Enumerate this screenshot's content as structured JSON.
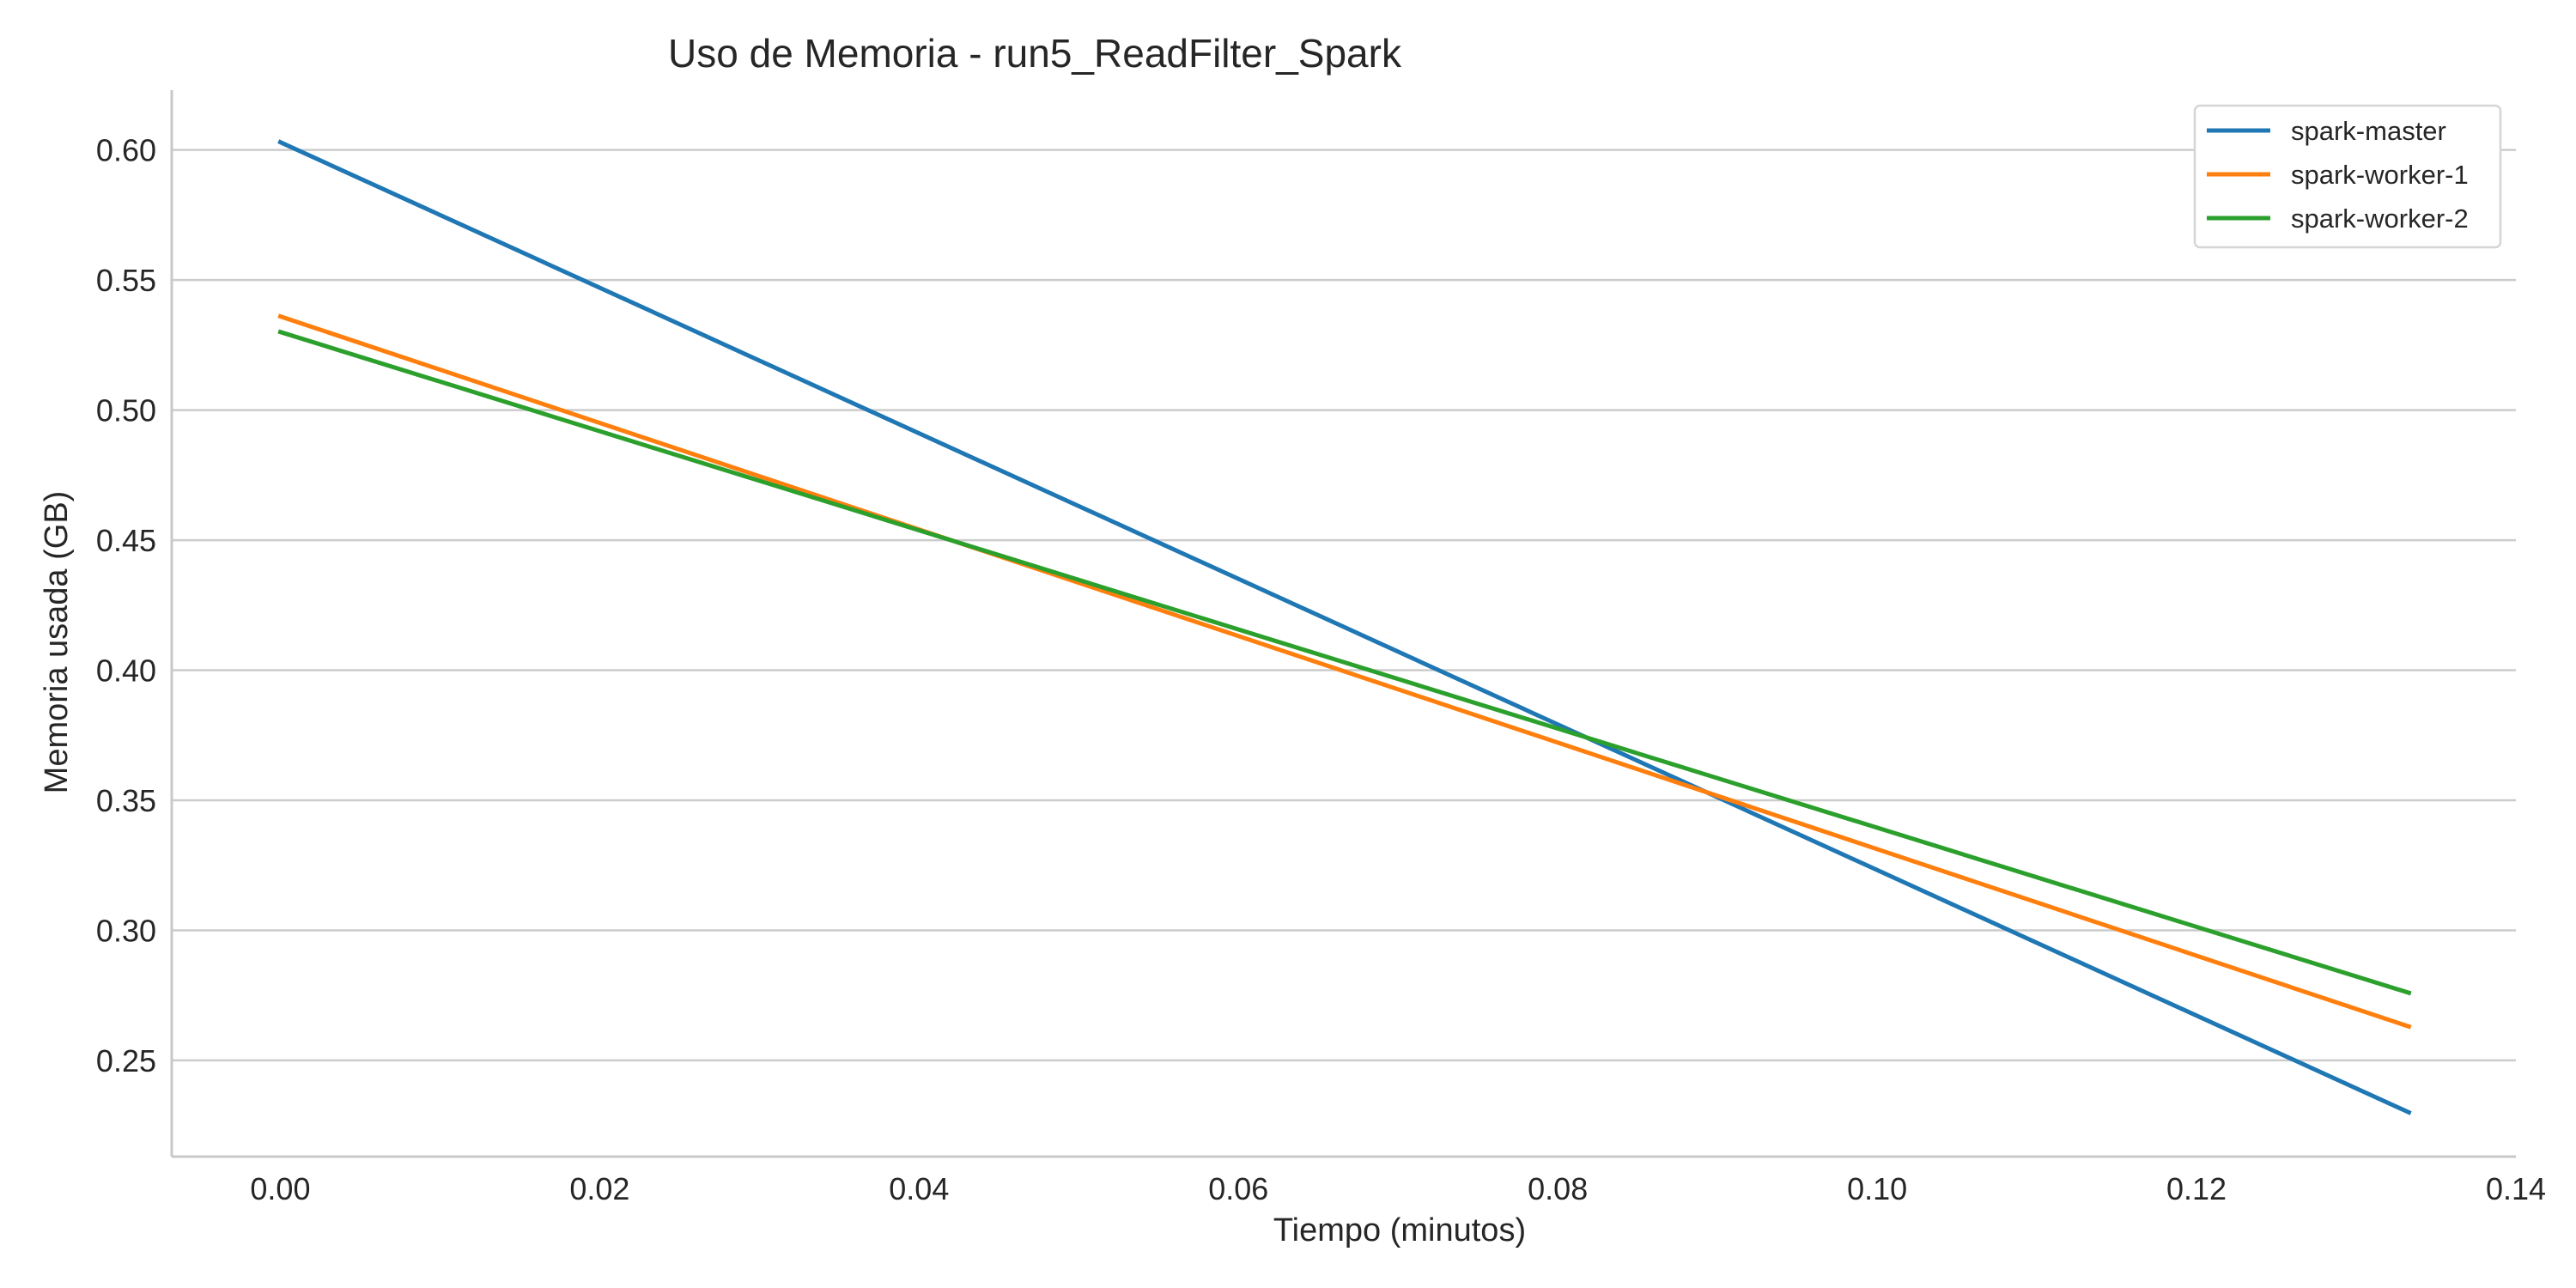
{
  "chart_data": {
    "type": "line",
    "title": "Uso de Memoria - run5_ReadFilter_Spark",
    "xlabel": "Tiempo (minutos)",
    "ylabel": "Memoria usada (GB)",
    "xlim": [
      -0.0068,
      0.14
    ],
    "ylim": [
      0.213,
      0.623
    ],
    "x_ticks": [
      0.0,
      0.02,
      0.04,
      0.06,
      0.08,
      0.1,
      0.12,
      0.14
    ],
    "x_tick_labels": [
      "0.00",
      "0.02",
      "0.04",
      "0.06",
      "0.08",
      "0.10",
      "0.12",
      "0.14"
    ],
    "y_ticks": [
      0.25,
      0.3,
      0.35,
      0.4,
      0.45,
      0.5,
      0.55,
      0.6
    ],
    "y_tick_labels": [
      "0.25",
      "0.30",
      "0.35",
      "0.40",
      "0.45",
      "0.50",
      "0.55",
      "0.60"
    ],
    "grid": "horizontal",
    "legend_position": "top-right",
    "series": [
      {
        "name": "spark-master",
        "color": "#1f77b4",
        "x": [
          0.0,
          0.1333
        ],
        "y": [
          0.603,
          0.23
        ]
      },
      {
        "name": "spark-worker-1",
        "color": "#ff7f0e",
        "x": [
          0.0,
          0.1333
        ],
        "y": [
          0.536,
          0.263
        ]
      },
      {
        "name": "spark-worker-2",
        "color": "#2ca02c",
        "x": [
          0.0,
          0.1333
        ],
        "y": [
          0.53,
          0.276
        ]
      }
    ]
  }
}
